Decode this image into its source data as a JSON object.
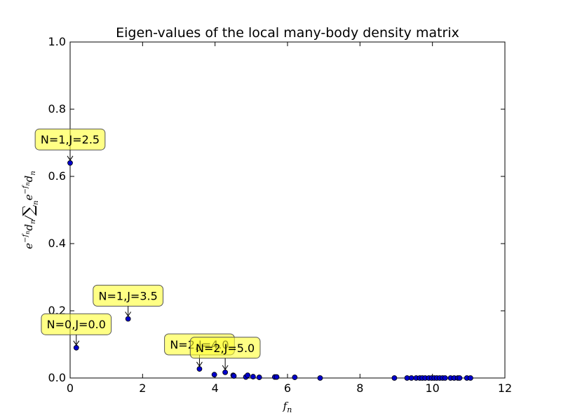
{
  "chart_data": {
    "type": "scatter",
    "title": "Eigen-values of the local many-body density matrix",
    "xlabel": "f_n",
    "ylabel": "e^{-f_n} d_n / Σ_n e^{-f_n} d_n",
    "xlim": [
      0,
      12
    ],
    "ylim": [
      0,
      1.0
    ],
    "x_ticks": [
      "0",
      "2",
      "4",
      "6",
      "8",
      "10",
      "12"
    ],
    "y_ticks": [
      "0.0",
      "0.2",
      "0.4",
      "0.6",
      "0.8",
      "1.0"
    ],
    "marker_color": "#0000cc",
    "grid": false,
    "points": [
      {
        "x": 0.0,
        "y": 0.64
      },
      {
        "x": 0.17,
        "y": 0.09
      },
      {
        "x": 1.6,
        "y": 0.176
      },
      {
        "x": 3.57,
        "y": 0.027
      },
      {
        "x": 3.98,
        "y": 0.01
      },
      {
        "x": 4.28,
        "y": 0.017
      },
      {
        "x": 4.5,
        "y": 0.008
      },
      {
        "x": 4.52,
        "y": 0.006
      },
      {
        "x": 4.85,
        "y": 0.003
      },
      {
        "x": 4.9,
        "y": 0.008
      },
      {
        "x": 5.05,
        "y": 0.004
      },
      {
        "x": 5.22,
        "y": 0.002
      },
      {
        "x": 5.65,
        "y": 0.003
      },
      {
        "x": 5.7,
        "y": 0.003
      },
      {
        "x": 6.2,
        "y": 0.002
      },
      {
        "x": 6.9,
        "y": 0.0
      },
      {
        "x": 8.95,
        "y": 0.0
      },
      {
        "x": 9.3,
        "y": 0.0
      },
      {
        "x": 9.42,
        "y": 0.0
      },
      {
        "x": 9.55,
        "y": 0.0
      },
      {
        "x": 9.65,
        "y": 0.0
      },
      {
        "x": 9.72,
        "y": 0.0
      },
      {
        "x": 9.8,
        "y": 0.0
      },
      {
        "x": 9.9,
        "y": 0.0
      },
      {
        "x": 9.98,
        "y": 0.0
      },
      {
        "x": 10.05,
        "y": 0.0
      },
      {
        "x": 10.12,
        "y": 0.0
      },
      {
        "x": 10.2,
        "y": 0.0
      },
      {
        "x": 10.28,
        "y": 0.0
      },
      {
        "x": 10.35,
        "y": 0.0
      },
      {
        "x": 10.5,
        "y": 0.0
      },
      {
        "x": 10.6,
        "y": 0.0
      },
      {
        "x": 10.7,
        "y": 0.0
      },
      {
        "x": 10.75,
        "y": 0.0
      },
      {
        "x": 10.95,
        "y": 0.0
      },
      {
        "x": 11.05,
        "y": 0.0
      }
    ],
    "annotations": [
      {
        "text": "N=1,J=2.5",
        "x": 0.0,
        "y": 0.64,
        "text_x": 0.0,
        "text_y": 0.71
      },
      {
        "text": "N=1,J=3.5",
        "x": 1.6,
        "y": 0.176,
        "text_x": 1.6,
        "text_y": 0.245
      },
      {
        "text": "N=0,J=0.0",
        "x": 0.17,
        "y": 0.09,
        "text_x": 0.17,
        "text_y": 0.16
      },
      {
        "text": "N=2,J=4.0",
        "x": 3.57,
        "y": 0.027,
        "text_x": 3.57,
        "text_y": 0.1
      },
      {
        "text": "N=2,J=5.0",
        "x": 4.28,
        "y": 0.017,
        "text_x": 4.28,
        "text_y": 0.09
      }
    ]
  }
}
